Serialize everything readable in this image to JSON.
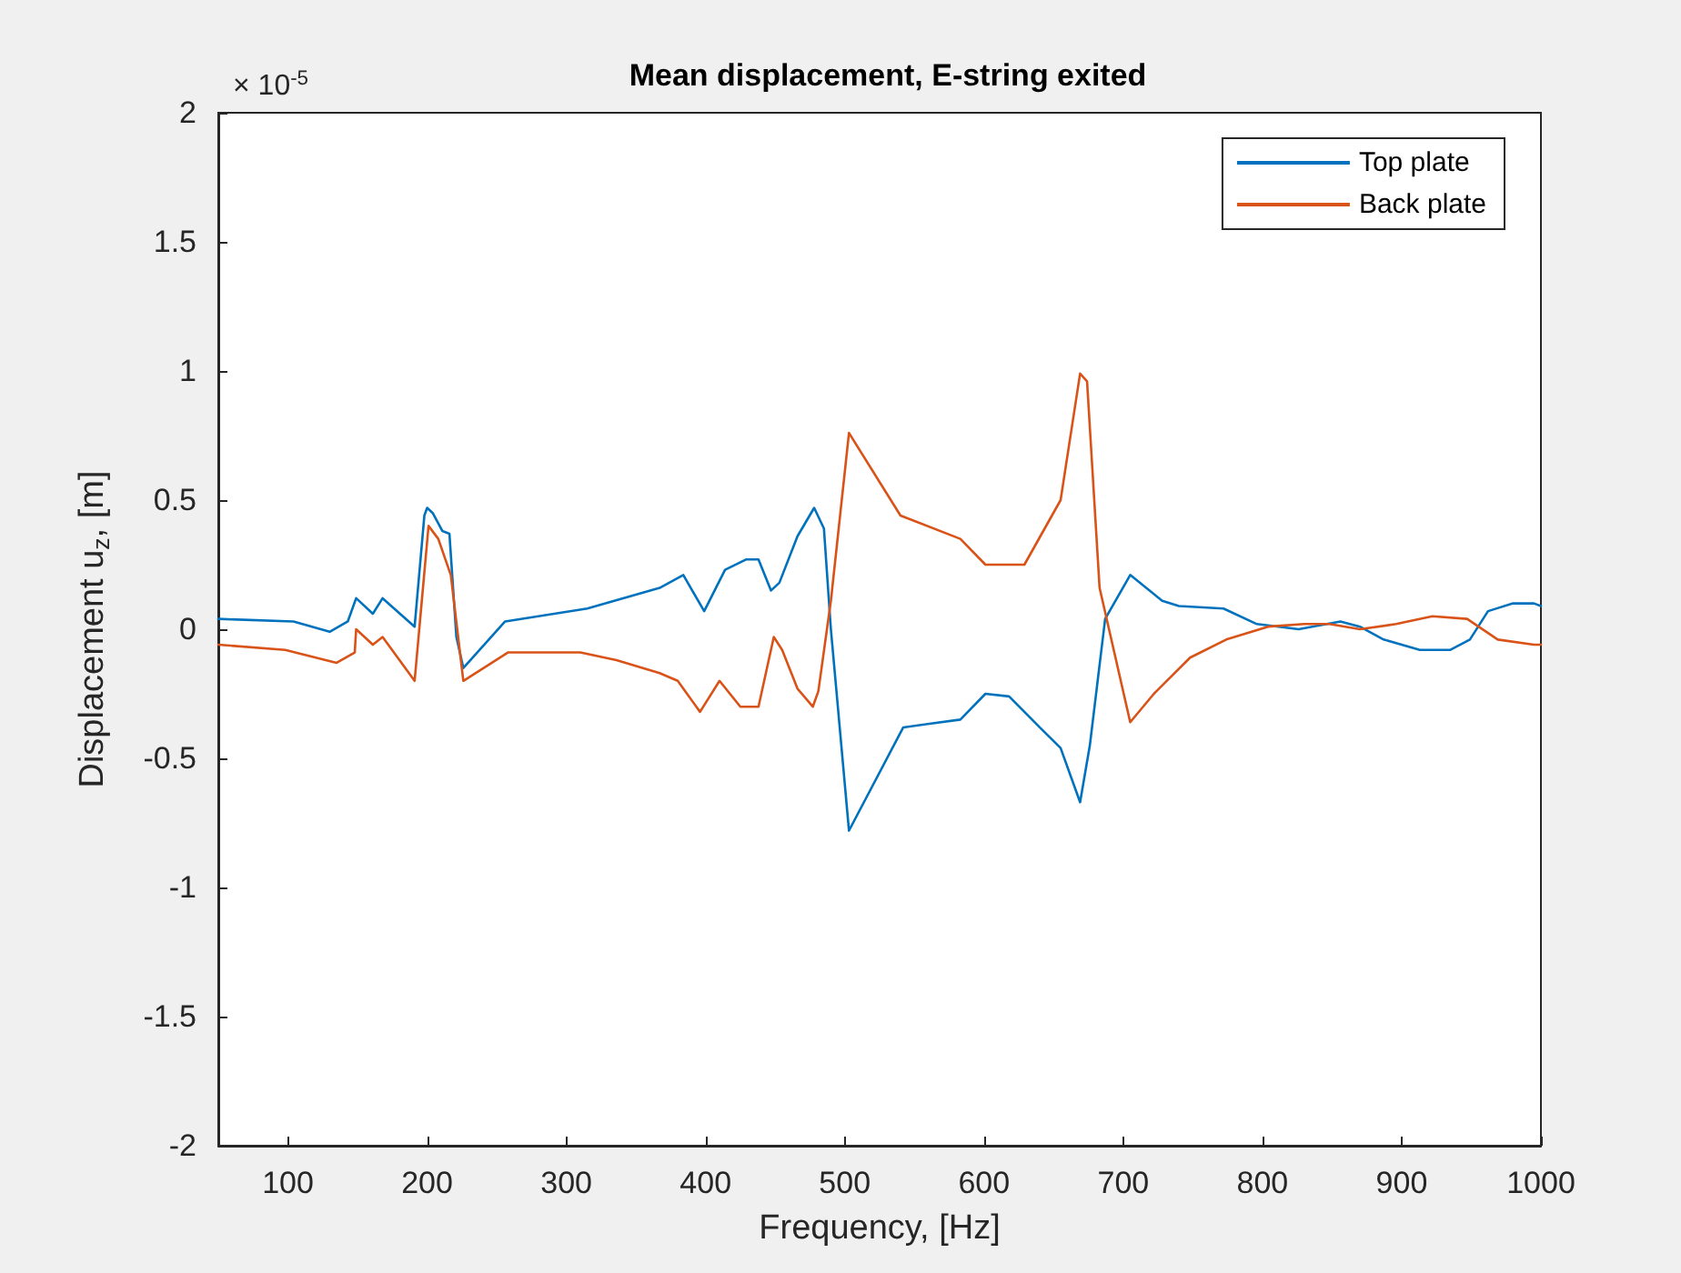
{
  "chart_data": {
    "type": "line",
    "title": "Mean displacement, E-string exited",
    "xlabel": "Frequency, [Hz]",
    "ylabel": "Displacement u$_{z}$, [m]",
    "annotations": [
      "× 10$^{-5}$"
    ],
    "series": [
      {
        "name": "Top plate",
        "color": "#0072bd",
        "x": [
          50,
          104,
          130,
          143,
          149,
          161,
          168,
          191,
          198,
          200,
          204,
          211,
          216,
          221,
          226,
          256,
          315,
          367,
          384,
          399,
          414,
          429,
          438,
          447,
          453,
          466,
          478,
          485,
          490,
          503,
          542,
          583,
          601,
          618,
          640,
          655,
          669,
          676,
          687,
          705,
          728,
          740,
          772,
          796,
          826,
          856,
          870,
          887,
          913,
          935,
          949,
          962,
          980,
          995,
          1000
        ],
        "values": [
          0.04,
          0.03,
          -0.01,
          0.03,
          0.12,
          0.06,
          0.12,
          0.01,
          0.44,
          0.47,
          0.45,
          0.38,
          0.37,
          -0.03,
          -0.15,
          0.03,
          0.08,
          0.16,
          0.21,
          0.07,
          0.23,
          0.27,
          0.27,
          0.15,
          0.18,
          0.36,
          0.47,
          0.39,
          0.0,
          -0.78,
          -0.38,
          -0.35,
          -0.25,
          -0.26,
          -0.38,
          -0.46,
          -0.67,
          -0.45,
          0.04,
          0.21,
          0.11,
          0.09,
          0.08,
          0.02,
          0.0,
          0.03,
          0.01,
          -0.04,
          -0.08,
          -0.08,
          -0.04,
          0.07,
          0.1,
          0.1,
          0.09
        ]
      },
      {
        "name": "Back plate",
        "color": "#d95319",
        "x": [
          50,
          98,
          135,
          148,
          149,
          161,
          168,
          191,
          201,
          208,
          217,
          226,
          258,
          310,
          336,
          367,
          380,
          396,
          410,
          425,
          438,
          449,
          455,
          466,
          477,
          481,
          490,
          503,
          540,
          583,
          601,
          629,
          655,
          669,
          674,
          683,
          705,
          722,
          748,
          774,
          804,
          830,
          848,
          870,
          896,
          922,
          947,
          969,
          995,
          1000
        ],
        "values": [
          -0.06,
          -0.08,
          -0.13,
          -0.09,
          0.0,
          -0.06,
          -0.03,
          -0.2,
          0.4,
          0.35,
          0.21,
          -0.2,
          -0.09,
          -0.09,
          -0.12,
          -0.17,
          -0.2,
          -0.32,
          -0.2,
          -0.3,
          -0.3,
          -0.03,
          -0.08,
          -0.23,
          -0.3,
          -0.24,
          0.11,
          0.76,
          0.44,
          0.35,
          0.25,
          0.25,
          0.5,
          0.99,
          0.96,
          0.16,
          -0.36,
          -0.25,
          -0.11,
          -0.04,
          0.01,
          0.02,
          0.02,
          0.0,
          0.02,
          0.05,
          0.04,
          -0.04,
          -0.06,
          -0.06
        ]
      }
    ],
    "xlim": [
      50,
      1000
    ],
    "xticks": [
      100,
      200,
      300,
      400,
      500,
      600,
      700,
      800,
      900,
      1000
    ],
    "ylim": [
      -2,
      2
    ],
    "yticks": [
      -2,
      -1.5,
      -1,
      -0.5,
      0,
      0.5,
      1,
      1.5,
      2
    ],
    "grid": false,
    "legend": "top right",
    "marker": "none",
    "line_style": "solid"
  }
}
